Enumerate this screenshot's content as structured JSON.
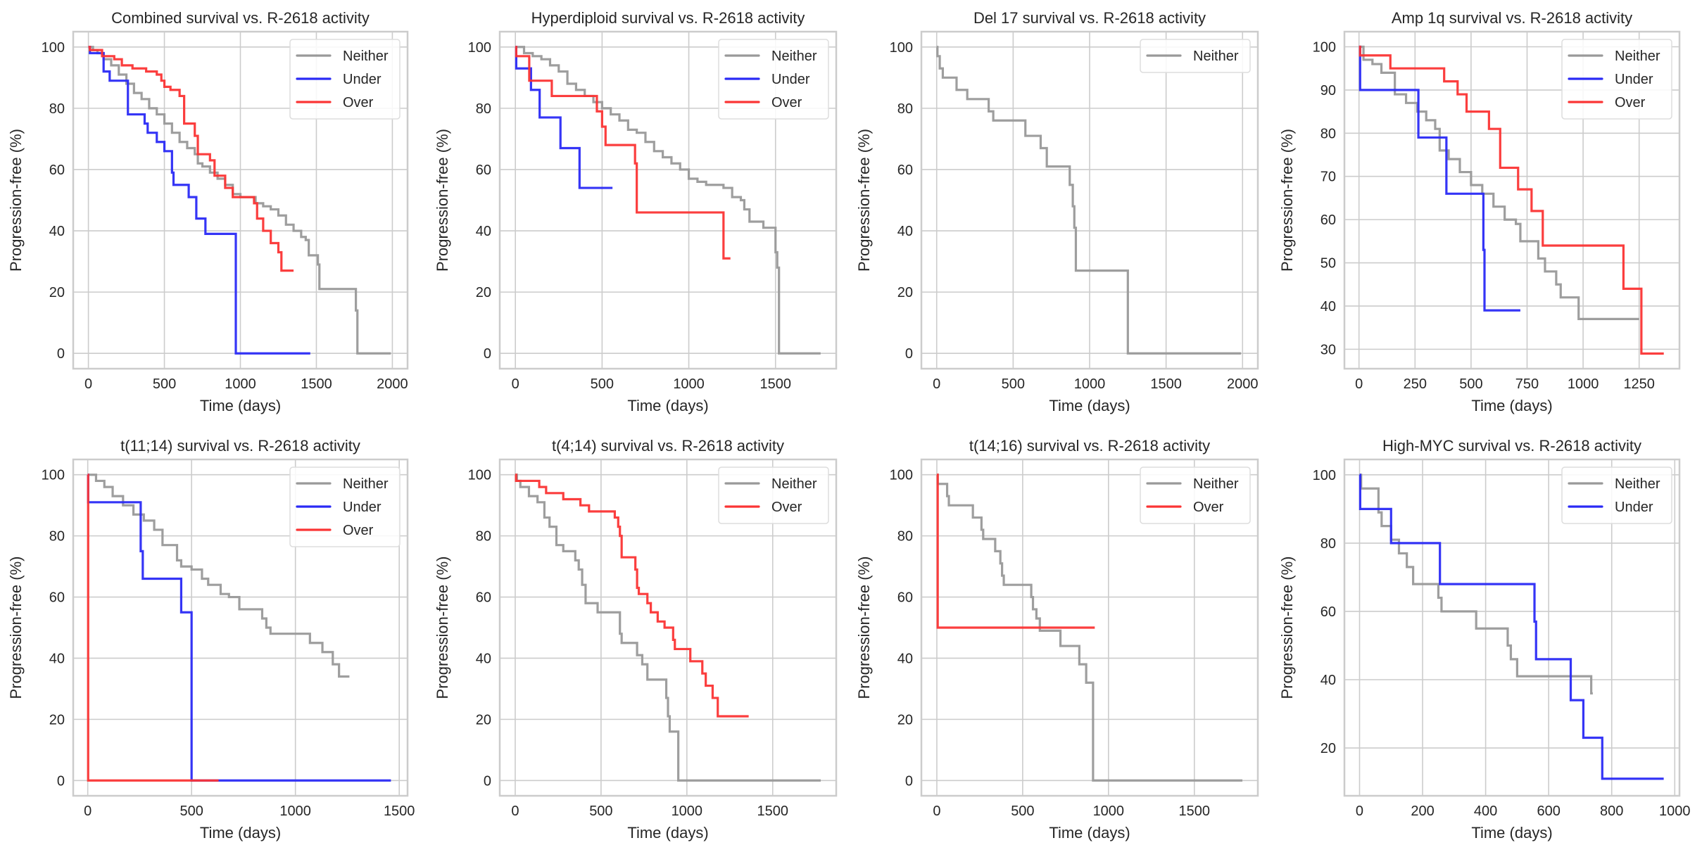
{
  "figure": {
    "colors": {
      "Neither": "#999999",
      "Under": "#2a2af5",
      "Over": "#fb3434",
      "grid": "#cccccc",
      "text": "#262626"
    }
  },
  "chart_data": [
    {
      "type": "line",
      "step": true,
      "title": "Combined survival vs. R-2618 activity",
      "xlabel": "Time (days)",
      "ylabel": "Progression-free (%)",
      "xlim": [
        -100,
        2100
      ],
      "ylim": [
        -5,
        105
      ],
      "xticks": [
        0,
        500,
        1000,
        1500,
        2000
      ],
      "yticks": [
        0,
        20,
        40,
        60,
        80,
        100
      ],
      "legend": [
        "Neither",
        "Under",
        "Over"
      ],
      "legend_position": "top-right",
      "grid": true,
      "series": [
        {
          "name": "Neither",
          "x": [
            0,
            30,
            60,
            100,
            150,
            200,
            250,
            300,
            350,
            400,
            450,
            500,
            550,
            600,
            650,
            700,
            720,
            750,
            800,
            850,
            900,
            950,
            1000,
            1100,
            1150,
            1200,
            1250,
            1300,
            1350,
            1400,
            1430,
            1450,
            1500,
            1510,
            1520,
            1760,
            1770,
            1990
          ],
          "y": [
            100,
            99,
            98,
            96,
            94,
            91,
            88,
            85,
            83,
            80,
            78,
            75,
            72,
            69,
            67,
            65,
            62,
            61,
            59,
            57,
            55,
            52,
            51,
            49,
            48,
            47,
            45,
            42,
            40,
            38,
            37,
            32,
            32,
            29,
            21,
            14,
            0,
            0
          ]
        },
        {
          "name": "Under",
          "x": [
            0,
            10,
            100,
            140,
            250,
            260,
            370,
            390,
            450,
            500,
            550,
            560,
            660,
            710,
            770,
            960,
            970,
            1460
          ],
          "y": [
            100,
            98,
            92,
            89,
            89,
            78,
            75,
            72,
            69,
            66,
            59,
            55,
            51,
            44,
            39,
            39,
            0,
            0
          ]
        },
        {
          "name": "Over",
          "x": [
            0,
            10,
            90,
            170,
            220,
            290,
            380,
            450,
            480,
            500,
            540,
            600,
            630,
            700,
            720,
            800,
            830,
            900,
            950,
            1000,
            1090,
            1110,
            1150,
            1200,
            1250,
            1270,
            1350
          ],
          "y": [
            100,
            99,
            97,
            96,
            94,
            93,
            92,
            91,
            89,
            87,
            86,
            84,
            75,
            71,
            65,
            63,
            58,
            54,
            51,
            51,
            49,
            44,
            40,
            36,
            33,
            27,
            27
          ]
        }
      ]
    },
    {
      "type": "line",
      "step": true,
      "title": "Hyperdiploid survival vs. R-2618 activity",
      "xlabel": "Time (days)",
      "ylabel": "Progression-free (%)",
      "xlim": [
        -90,
        1850
      ],
      "ylim": [
        -5,
        105
      ],
      "xticks": [
        0,
        500,
        1000,
        1500
      ],
      "yticks": [
        0,
        20,
        40,
        60,
        80,
        100
      ],
      "legend": [
        "Neither",
        "Under",
        "Over"
      ],
      "legend_position": "top-right",
      "grid": true,
      "series": [
        {
          "name": "Neither",
          "x": [
            0,
            50,
            100,
            150,
            200,
            250,
            300,
            350,
            400,
            450,
            500,
            550,
            600,
            650,
            700,
            750,
            800,
            850,
            900,
            950,
            1000,
            1050,
            1100,
            1200,
            1250,
            1300,
            1320,
            1350,
            1400,
            1430,
            1500,
            1510,
            1520,
            1760
          ],
          "y": [
            100,
            98,
            97,
            96,
            94,
            92,
            88,
            86,
            84,
            82,
            80,
            78,
            76,
            73,
            72,
            69,
            66,
            64,
            62,
            60,
            57,
            56,
            55,
            54,
            51,
            50,
            47,
            43,
            43,
            41,
            33,
            28,
            0,
            0
          ]
        },
        {
          "name": "Under",
          "x": [
            0,
            5,
            90,
            140,
            260,
            370,
            560
          ],
          "y": [
            100,
            93,
            86,
            77,
            67,
            54,
            54
          ]
        },
        {
          "name": "Over",
          "x": [
            0,
            5,
            80,
            210,
            470,
            500,
            520,
            690,
            700,
            1200,
            1240
          ],
          "y": [
            100,
            97,
            89,
            84,
            79,
            74,
            68,
            62,
            46,
            31,
            31
          ]
        }
      ]
    },
    {
      "type": "line",
      "step": true,
      "title": "Del 17 survival vs. R-2618 activity",
      "xlabel": "Time (days)",
      "ylabel": "Progression-free (%)",
      "xlim": [
        -100,
        2100
      ],
      "ylim": [
        -5,
        105
      ],
      "xticks": [
        0,
        500,
        1000,
        1500,
        2000
      ],
      "yticks": [
        0,
        20,
        40,
        60,
        80,
        100
      ],
      "legend": [
        "Neither"
      ],
      "legend_position": "top-right",
      "grid": true,
      "series": [
        {
          "name": "Neither",
          "x": [
            0,
            5,
            20,
            40,
            130,
            200,
            340,
            370,
            580,
            680,
            720,
            870,
            890,
            900,
            910,
            1250,
            1990
          ],
          "y": [
            100,
            97,
            93,
            90,
            86,
            83,
            79,
            76,
            71,
            67,
            61,
            55,
            48,
            41,
            27,
            0,
            0
          ]
        }
      ]
    },
    {
      "type": "line",
      "step": true,
      "title": "Amp 1q survival vs. R-2618 activity",
      "xlabel": "Time (days)",
      "ylabel": "Progression-free (%)",
      "xlim": [
        -65,
        1430
      ],
      "ylim": [
        25.5,
        103.5
      ],
      "xticks": [
        0,
        250,
        500,
        750,
        1000,
        1250
      ],
      "yticks": [
        30,
        40,
        50,
        60,
        70,
        80,
        90,
        100
      ],
      "legend": [
        "Neither",
        "Under",
        "Over"
      ],
      "legend_position": "top-right",
      "grid": true,
      "series": [
        {
          "name": "Neither",
          "x": [
            0,
            20,
            60,
            100,
            160,
            210,
            260,
            300,
            340,
            360,
            400,
            450,
            500,
            550,
            600,
            650,
            700,
            720,
            800,
            830,
            880,
            900,
            980,
            1250
          ],
          "y": [
            100,
            97,
            96,
            94,
            89,
            87,
            85,
            83,
            81,
            76,
            74,
            71,
            68,
            66,
            63,
            60,
            59,
            55,
            51,
            48,
            45,
            42,
            37,
            37
          ]
        },
        {
          "name": "Under",
          "x": [
            0,
            5,
            265,
            390,
            555,
            560,
            720
          ],
          "y": [
            100,
            90,
            79,
            66,
            53,
            39,
            39
          ]
        },
        {
          "name": "Over",
          "x": [
            0,
            5,
            140,
            380,
            440,
            480,
            580,
            630,
            710,
            770,
            820,
            1180,
            1260,
            1360
          ],
          "y": [
            100,
            98,
            95,
            92,
            89,
            85,
            81,
            72,
            67,
            62,
            54,
            44,
            29,
            29
          ]
        }
      ]
    },
    {
      "type": "line",
      "step": true,
      "title": "t(11;14) survival vs. R-2618 activity",
      "xlabel": "Time (days)",
      "ylabel": "Progression-free (%)",
      "xlim": [
        -70,
        1540
      ],
      "ylim": [
        -5,
        105
      ],
      "xticks": [
        0,
        500,
        1000,
        1500
      ],
      "yticks": [
        0,
        20,
        40,
        60,
        80,
        100
      ],
      "legend": [
        "Neither",
        "Under",
        "Over"
      ],
      "legend_position": "top-right",
      "grid": true,
      "series": [
        {
          "name": "Neither",
          "x": [
            0,
            40,
            80,
            120,
            170,
            220,
            270,
            320,
            360,
            430,
            450,
            500,
            550,
            580,
            640,
            680,
            730,
            840,
            860,
            880,
            1070,
            1130,
            1180,
            1210,
            1260
          ],
          "y": [
            100,
            98,
            96,
            93,
            90,
            87,
            85,
            82,
            77,
            72,
            70,
            69,
            66,
            64,
            61,
            60,
            56,
            53,
            50,
            48,
            45,
            42,
            38,
            34,
            34
          ]
        },
        {
          "name": "Under",
          "x": [
            0,
            2,
            255,
            265,
            450,
            500,
            1460
          ],
          "y": [
            100,
            91,
            75,
            66,
            55,
            0,
            0
          ]
        },
        {
          "name": "Over",
          "x": [
            0,
            2,
            630
          ],
          "y": [
            100,
            0,
            0
          ]
        }
      ]
    },
    {
      "type": "line",
      "step": true,
      "title": "t(4;14) survival vs. R-2618 activity",
      "xlabel": "Time (days)",
      "ylabel": "Progression-free (%)",
      "xlim": [
        -90,
        1870
      ],
      "ylim": [
        -5,
        105
      ],
      "xticks": [
        0,
        500,
        1000,
        1500
      ],
      "yticks": [
        0,
        20,
        40,
        60,
        80,
        100
      ],
      "legend": [
        "Neither",
        "Over"
      ],
      "legend_position": "top-right",
      "grid": true,
      "series": [
        {
          "name": "Neither",
          "x": [
            0,
            10,
            30,
            80,
            130,
            170,
            200,
            240,
            280,
            350,
            370,
            390,
            410,
            480,
            610,
            620,
            630,
            710,
            740,
            770,
            880,
            890,
            900,
            950,
            1780
          ],
          "y": [
            100,
            98,
            96,
            93,
            91,
            86,
            83,
            77,
            75,
            72,
            69,
            64,
            58,
            55,
            48,
            45,
            45,
            41,
            38,
            33,
            27,
            21,
            16,
            0,
            0
          ]
        },
        {
          "name": "Over",
          "x": [
            0,
            5,
            140,
            180,
            280,
            380,
            430,
            580,
            600,
            610,
            620,
            640,
            700,
            710,
            720,
            770,
            790,
            830,
            870,
            920,
            930,
            1020,
            1090,
            1110,
            1150,
            1180,
            1360
          ],
          "y": [
            100,
            98,
            96,
            94,
            92,
            90,
            88,
            86,
            83,
            80,
            73,
            73,
            69,
            63,
            61,
            58,
            55,
            52,
            50,
            46,
            43,
            39,
            35,
            31,
            27,
            21,
            21
          ]
        }
      ]
    },
    {
      "type": "line",
      "step": true,
      "title": "t(14;16) survival vs. R-2618 activity",
      "xlabel": "Time (days)",
      "ylabel": "Progression-free (%)",
      "xlim": [
        -90,
        1870
      ],
      "ylim": [
        -5,
        105
      ],
      "xticks": [
        0,
        500,
        1000,
        1500
      ],
      "yticks": [
        0,
        20,
        40,
        60,
        80,
        100
      ],
      "legend": [
        "Neither",
        "Over"
      ],
      "legend_position": "top-right",
      "grid": true,
      "series": [
        {
          "name": "Neither",
          "x": [
            0,
            5,
            60,
            70,
            210,
            260,
            270,
            340,
            370,
            380,
            390,
            550,
            560,
            580,
            600,
            720,
            830,
            870,
            910,
            1780
          ],
          "y": [
            100,
            97,
            93,
            90,
            86,
            82,
            79,
            75,
            71,
            67,
            64,
            60,
            56,
            53,
            49,
            44,
            38,
            32,
            0,
            0
          ]
        },
        {
          "name": "Over",
          "x": [
            0,
            5,
            920
          ],
          "y": [
            100,
            50,
            50
          ]
        }
      ]
    },
    {
      "type": "line",
      "step": true,
      "title": "High-MYC survival vs. R-2618 activity",
      "xlabel": "Time (days)",
      "ylabel": "Progression-free (%)",
      "xlim": [
        -48,
        1015
      ],
      "ylim": [
        6,
        104.5
      ],
      "xticks": [
        0,
        200,
        400,
        600,
        800,
        1000
      ],
      "yticks": [
        20,
        40,
        60,
        80,
        100
      ],
      "legend": [
        "Neither",
        "Under"
      ],
      "legend_position": "top-right",
      "grid": true,
      "series": [
        {
          "name": "Neither",
          "x": [
            0,
            5,
            60,
            70,
            100,
            125,
            150,
            170,
            250,
            260,
            370,
            470,
            480,
            500,
            735,
            740
          ],
          "y": [
            100,
            96,
            89,
            85,
            81,
            77,
            73,
            68,
            64,
            60,
            55,
            50,
            46,
            41,
            36,
            36
          ]
        },
        {
          "name": "Under",
          "x": [
            0,
            2,
            100,
            255,
            555,
            560,
            670,
            710,
            770,
            965
          ],
          "y": [
            100,
            90,
            80,
            68,
            57,
            46,
            34,
            23,
            11,
            11
          ]
        }
      ]
    }
  ]
}
